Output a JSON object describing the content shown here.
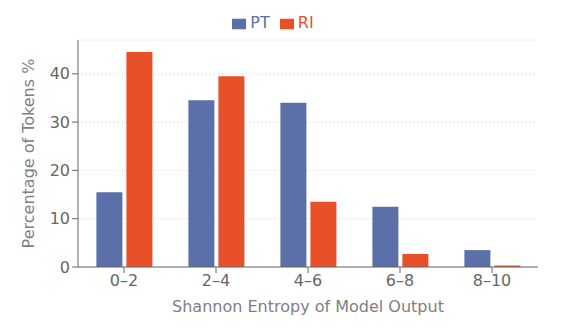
{
  "chart_data": {
    "type": "bar",
    "categories": [
      "0–2",
      "2–4",
      "4–6",
      "6–8",
      "8–10"
    ],
    "series": [
      {
        "name": "PT",
        "color": "#5b6fa8",
        "values": [
          15.5,
          34.5,
          34.0,
          12.5,
          3.5
        ]
      },
      {
        "name": "RI",
        "color": "#e8502a",
        "values": [
          44.5,
          39.5,
          13.5,
          2.7,
          0.3
        ]
      }
    ],
    "xlabel": "Shannon Entropy of Model Output",
    "ylabel": "Percentage of Tokens %",
    "ylim": [
      0,
      47
    ],
    "yticks": [
      0,
      10,
      20,
      30,
      40
    ],
    "grid": true,
    "legend": "top"
  }
}
